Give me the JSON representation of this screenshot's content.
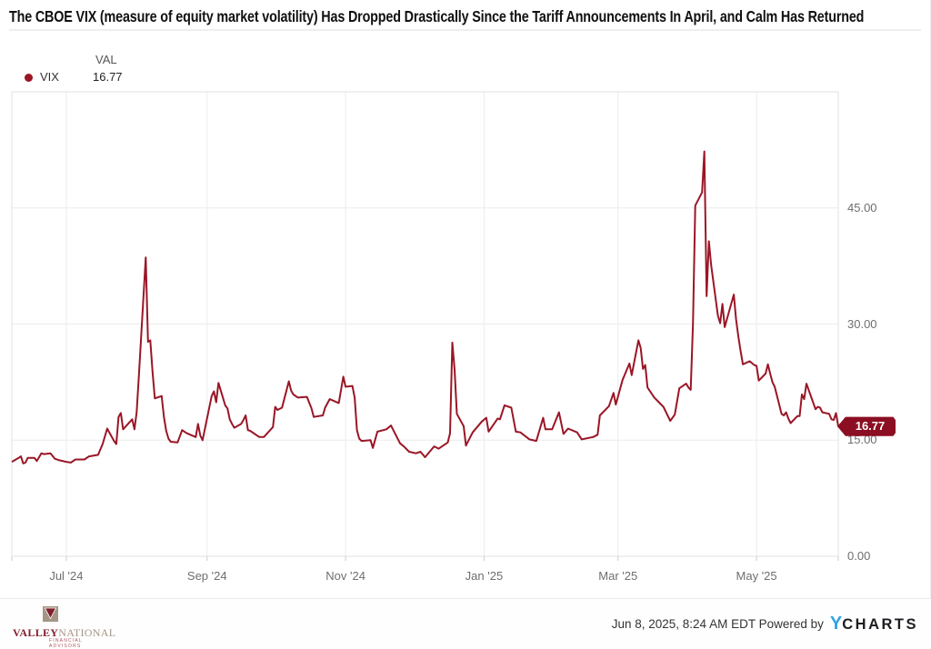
{
  "title": "The CBOE VIX (measure of equity market volatility) Has Dropped Drastically Since the Tariff Announcements In April, and Calm Has Returned",
  "legend": {
    "series_label": "VIX",
    "value_header": "VAL",
    "value": "16.77"
  },
  "badge": {
    "value": "16.77"
  },
  "colors": {
    "line": "#9A1626",
    "badge_bg": "#8B0E22",
    "grid": "#ececec",
    "border": "#e0e0e0",
    "tick": "#cccccc",
    "axis_text": "#6e6e6e",
    "ycharts_blue": "#2FA3E6",
    "logo_red": "#7E222E",
    "logo_taupe": "#A49685"
  },
  "footer": {
    "timestamp": "Jun 8, 2025, 8:24 AM EDT",
    "powered_by": "Powered by",
    "ycharts_y": "Y",
    "ycharts_rest": "CHARTS",
    "logo": {
      "part1": "VALLEY",
      "part2": "NATIONAL",
      "subtext": "FINANCIAL ADVISORS"
    }
  },
  "chart_data": {
    "type": "line",
    "title": "The CBOE VIX (measure of equity market volatility) Has Dropped Drastically Since the Tariff Announcements In April, and Calm Has Returned",
    "grid": true,
    "legend_position": "top-left",
    "x_domain": [
      "2024-06-07",
      "2025-06-06"
    ],
    "y_domain": [
      0,
      60
    ],
    "y_ticks": [
      0,
      15,
      30,
      45
    ],
    "y_tick_labels": [
      "0.00",
      "15.00",
      "30.00",
      "45.00"
    ],
    "x_ticks": [
      {
        "date": "2024-07-01",
        "label": "Jul '24"
      },
      {
        "date": "2024-09-01",
        "label": "Sep '24"
      },
      {
        "date": "2024-11-01",
        "label": "Nov '24"
      },
      {
        "date": "2025-01-01",
        "label": "Jan '25"
      },
      {
        "date": "2025-03-01",
        "label": "Mar '25"
      },
      {
        "date": "2025-05-01",
        "label": "May '25"
      }
    ],
    "last_value": 16.77,
    "series": [
      {
        "name": "VIX",
        "color": "#9A1626",
        "points": [
          [
            "2024-06-07",
            12.2
          ],
          [
            "2024-06-10",
            12.7
          ],
          [
            "2024-06-11",
            12.9
          ],
          [
            "2024-06-12",
            12.0
          ],
          [
            "2024-06-13",
            12.1
          ],
          [
            "2024-06-14",
            12.7
          ],
          [
            "2024-06-17",
            12.7
          ],
          [
            "2024-06-18",
            12.3
          ],
          [
            "2024-06-20",
            13.3
          ],
          [
            "2024-06-21",
            13.2
          ],
          [
            "2024-06-24",
            13.3
          ],
          [
            "2024-06-26",
            12.6
          ],
          [
            "2024-06-28",
            12.4
          ],
          [
            "2024-07-01",
            12.2
          ],
          [
            "2024-07-03",
            12.1
          ],
          [
            "2024-07-05",
            12.5
          ],
          [
            "2024-07-09",
            12.5
          ],
          [
            "2024-07-11",
            12.9
          ],
          [
            "2024-07-15",
            13.1
          ],
          [
            "2024-07-17",
            14.5
          ],
          [
            "2024-07-19",
            16.5
          ],
          [
            "2024-07-22",
            14.9
          ],
          [
            "2024-07-23",
            14.5
          ],
          [
            "2024-07-24",
            18.0
          ],
          [
            "2024-07-25",
            18.5
          ],
          [
            "2024-07-26",
            16.4
          ],
          [
            "2024-07-30",
            17.7
          ],
          [
            "2024-07-31",
            16.4
          ],
          [
            "2024-08-01",
            18.6
          ],
          [
            "2024-08-02",
            23.4
          ],
          [
            "2024-08-05",
            38.6
          ],
          [
            "2024-08-06",
            27.7
          ],
          [
            "2024-08-07",
            27.9
          ],
          [
            "2024-08-08",
            23.8
          ],
          [
            "2024-08-09",
            20.4
          ],
          [
            "2024-08-12",
            20.7
          ],
          [
            "2024-08-13",
            18.0
          ],
          [
            "2024-08-14",
            16.2
          ],
          [
            "2024-08-15",
            15.2
          ],
          [
            "2024-08-16",
            14.8
          ],
          [
            "2024-08-19",
            14.7
          ],
          [
            "2024-08-21",
            16.3
          ],
          [
            "2024-08-23",
            15.9
          ],
          [
            "2024-08-27",
            15.4
          ],
          [
            "2024-08-28",
            17.1
          ],
          [
            "2024-08-29",
            15.6
          ],
          [
            "2024-08-30",
            15.0
          ],
          [
            "2024-09-03",
            20.7
          ],
          [
            "2024-09-04",
            21.3
          ],
          [
            "2024-09-05",
            19.9
          ],
          [
            "2024-09-06",
            22.4
          ],
          [
            "2024-09-09",
            19.5
          ],
          [
            "2024-09-10",
            19.1
          ],
          [
            "2024-09-11",
            17.7
          ],
          [
            "2024-09-12",
            17.1
          ],
          [
            "2024-09-13",
            16.6
          ],
          [
            "2024-09-16",
            17.1
          ],
          [
            "2024-09-17",
            17.6
          ],
          [
            "2024-09-18",
            18.2
          ],
          [
            "2024-09-19",
            16.3
          ],
          [
            "2024-09-20",
            16.2
          ],
          [
            "2024-09-24",
            15.4
          ],
          [
            "2024-09-26",
            15.4
          ],
          [
            "2024-09-30",
            16.7
          ],
          [
            "2024-10-01",
            19.3
          ],
          [
            "2024-10-02",
            18.9
          ],
          [
            "2024-10-04",
            19.2
          ],
          [
            "2024-10-07",
            22.6
          ],
          [
            "2024-10-08",
            21.4
          ],
          [
            "2024-10-09",
            20.9
          ],
          [
            "2024-10-11",
            20.5
          ],
          [
            "2024-10-15",
            20.6
          ],
          [
            "2024-10-17",
            19.1
          ],
          [
            "2024-10-18",
            18.0
          ],
          [
            "2024-10-22",
            18.2
          ],
          [
            "2024-10-23",
            19.2
          ],
          [
            "2024-10-25",
            20.3
          ],
          [
            "2024-10-29",
            19.8
          ],
          [
            "2024-10-31",
            23.2
          ],
          [
            "2024-11-01",
            21.9
          ],
          [
            "2024-11-04",
            22.0
          ],
          [
            "2024-11-05",
            20.5
          ],
          [
            "2024-11-06",
            16.3
          ],
          [
            "2024-11-07",
            15.2
          ],
          [
            "2024-11-08",
            14.9
          ],
          [
            "2024-11-12",
            15.0
          ],
          [
            "2024-11-13",
            14.0
          ],
          [
            "2024-11-15",
            16.1
          ],
          [
            "2024-11-19",
            16.4
          ],
          [
            "2024-11-21",
            16.9
          ],
          [
            "2024-11-25",
            14.6
          ],
          [
            "2024-11-27",
            14.1
          ],
          [
            "2024-11-29",
            13.5
          ],
          [
            "2024-12-02",
            13.3
          ],
          [
            "2024-12-04",
            13.5
          ],
          [
            "2024-12-06",
            12.8
          ],
          [
            "2024-12-10",
            14.2
          ],
          [
            "2024-12-12",
            13.9
          ],
          [
            "2024-12-16",
            14.7
          ],
          [
            "2024-12-17",
            15.9
          ],
          [
            "2024-12-18",
            27.6
          ],
          [
            "2024-12-19",
            24.1
          ],
          [
            "2024-12-20",
            18.4
          ],
          [
            "2024-12-23",
            16.8
          ],
          [
            "2024-12-24",
            14.3
          ],
          [
            "2024-12-27",
            16.0
          ],
          [
            "2024-12-31",
            17.4
          ],
          [
            "2025-01-02",
            17.9
          ],
          [
            "2025-01-03",
            16.1
          ],
          [
            "2025-01-07",
            17.8
          ],
          [
            "2025-01-08",
            17.7
          ],
          [
            "2025-01-10",
            19.5
          ],
          [
            "2025-01-13",
            19.2
          ],
          [
            "2025-01-15",
            16.1
          ],
          [
            "2025-01-17",
            16.0
          ],
          [
            "2025-01-21",
            15.1
          ],
          [
            "2025-01-24",
            14.9
          ],
          [
            "2025-01-27",
            17.9
          ],
          [
            "2025-01-28",
            16.4
          ],
          [
            "2025-01-31",
            16.4
          ],
          [
            "2025-02-03",
            18.6
          ],
          [
            "2025-02-05",
            15.8
          ],
          [
            "2025-02-07",
            16.5
          ],
          [
            "2025-02-11",
            16.0
          ],
          [
            "2025-02-13",
            15.1
          ],
          [
            "2025-02-18",
            15.4
          ],
          [
            "2025-02-20",
            15.7
          ],
          [
            "2025-02-21",
            18.2
          ],
          [
            "2025-02-25",
            19.4
          ],
          [
            "2025-02-27",
            21.1
          ],
          [
            "2025-02-28",
            19.6
          ],
          [
            "2025-03-03",
            22.8
          ],
          [
            "2025-03-04",
            23.5
          ],
          [
            "2025-03-06",
            24.9
          ],
          [
            "2025-03-07",
            23.4
          ],
          [
            "2025-03-10",
            27.9
          ],
          [
            "2025-03-11",
            26.9
          ],
          [
            "2025-03-12",
            24.2
          ],
          [
            "2025-03-13",
            24.7
          ],
          [
            "2025-03-14",
            21.8
          ],
          [
            "2025-03-17",
            20.5
          ],
          [
            "2025-03-19",
            19.9
          ],
          [
            "2025-03-21",
            19.3
          ],
          [
            "2025-03-24",
            17.5
          ],
          [
            "2025-03-26",
            18.3
          ],
          [
            "2025-03-28",
            21.7
          ],
          [
            "2025-03-31",
            22.3
          ],
          [
            "2025-04-01",
            21.8
          ],
          [
            "2025-04-02",
            21.5
          ],
          [
            "2025-04-03",
            30.0
          ],
          [
            "2025-04-04",
            45.3
          ],
          [
            "2025-04-07",
            47.0
          ],
          [
            "2025-04-08",
            52.3
          ],
          [
            "2025-04-09",
            33.6
          ],
          [
            "2025-04-10",
            40.7
          ],
          [
            "2025-04-11",
            37.6
          ],
          [
            "2025-04-14",
            31.1
          ],
          [
            "2025-04-15",
            30.1
          ],
          [
            "2025-04-16",
            32.6
          ],
          [
            "2025-04-17",
            29.6
          ],
          [
            "2025-04-21",
            33.8
          ],
          [
            "2025-04-22",
            30.6
          ],
          [
            "2025-04-23",
            28.4
          ],
          [
            "2025-04-24",
            26.5
          ],
          [
            "2025-04-25",
            24.8
          ],
          [
            "2025-04-28",
            25.2
          ],
          [
            "2025-04-30",
            24.7
          ],
          [
            "2025-05-01",
            24.6
          ],
          [
            "2025-05-02",
            22.7
          ],
          [
            "2025-05-05",
            23.6
          ],
          [
            "2025-05-06",
            24.8
          ],
          [
            "2025-05-07",
            23.6
          ],
          [
            "2025-05-08",
            22.5
          ],
          [
            "2025-05-09",
            21.9
          ],
          [
            "2025-05-12",
            18.4
          ],
          [
            "2025-05-13",
            18.2
          ],
          [
            "2025-05-14",
            18.6
          ],
          [
            "2025-05-15",
            17.8
          ],
          [
            "2025-05-16",
            17.2
          ],
          [
            "2025-05-19",
            18.1
          ],
          [
            "2025-05-20",
            18.1
          ],
          [
            "2025-05-21",
            20.9
          ],
          [
            "2025-05-22",
            20.3
          ],
          [
            "2025-05-23",
            22.3
          ],
          [
            "2025-05-27",
            19.0
          ],
          [
            "2025-05-28",
            19.3
          ],
          [
            "2025-05-29",
            19.2
          ],
          [
            "2025-05-30",
            18.6
          ],
          [
            "2025-06-02",
            18.4
          ],
          [
            "2025-06-03",
            17.7
          ],
          [
            "2025-06-04",
            17.6
          ],
          [
            "2025-06-05",
            18.5
          ],
          [
            "2025-06-06",
            16.77
          ]
        ]
      }
    ]
  }
}
